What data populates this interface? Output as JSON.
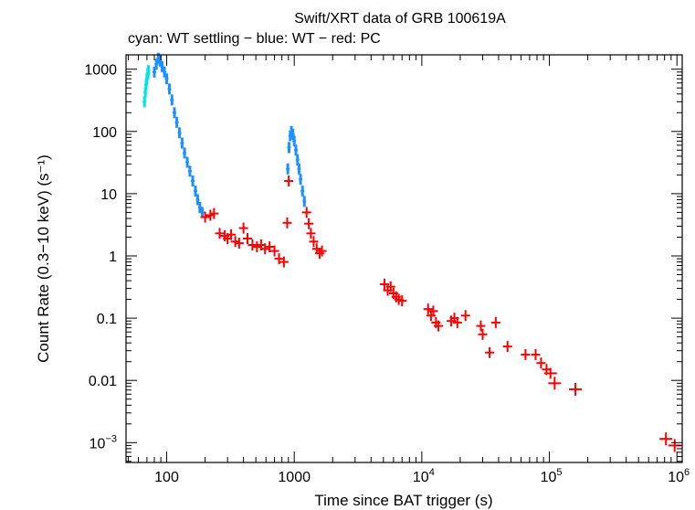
{
  "chart_data": {
    "type": "scatter",
    "title": "Swift/XRT data of GRB 100619A",
    "subtitle": "cyan: WT settling − blue: WT − red: PC",
    "xlabel": "Time since BAT trigger (s)",
    "ylabel": "Count Rate (0.3−10 keV) (s⁻¹)",
    "xscale": "log",
    "yscale": "log",
    "xlim": [
      48,
      1100000
    ],
    "ylim": [
      0.00048,
      1700
    ],
    "x_ticks": [
      {
        "value": 100,
        "label": "100"
      },
      {
        "value": 1000,
        "label": "1000"
      },
      {
        "value": 10000,
        "base": "10",
        "exp": "4"
      },
      {
        "value": 100000,
        "base": "10",
        "exp": "5"
      },
      {
        "value": 1000000,
        "base": "10",
        "exp": "6"
      }
    ],
    "y_ticks": [
      {
        "value": 1000,
        "label": "1000"
      },
      {
        "value": 100,
        "label": "100"
      },
      {
        "value": 10,
        "label": "10"
      },
      {
        "value": 1,
        "label": "1"
      },
      {
        "value": 0.1,
        "label": "0.1"
      },
      {
        "value": 0.01,
        "label": "0.01"
      },
      {
        "value": 0.001,
        "base": "10",
        "exp": "−3"
      }
    ],
    "colors": {
      "wt_settling": "#00e5e5",
      "wt": "#1e90ff",
      "pc": "#ff0000"
    },
    "series": [
      {
        "name": "WT settling",
        "color": "cyan",
        "points": [
          [
            67,
            300
          ],
          [
            68,
            420
          ],
          [
            69,
            560
          ],
          [
            70,
            700
          ],
          [
            71,
            850
          ],
          [
            72,
            950
          ]
        ]
      },
      {
        "name": "WT",
        "color": "blue",
        "points": [
          [
            80,
            900
          ],
          [
            83,
            1200
          ],
          [
            86,
            1500
          ],
          [
            89,
            1350
          ],
          [
            92,
            1100
          ],
          [
            96,
            900
          ],
          [
            100,
            700
          ],
          [
            105,
            480
          ],
          [
            110,
            320
          ],
          [
            115,
            200
          ],
          [
            120,
            140
          ],
          [
            126,
            95
          ],
          [
            132,
            65
          ],
          [
            138,
            45
          ],
          [
            145,
            32
          ],
          [
            152,
            23
          ],
          [
            160,
            16
          ],
          [
            168,
            11
          ],
          [
            175,
            8
          ],
          [
            182,
            6
          ],
          [
            190,
            5
          ],
          [
            890,
            25
          ],
          [
            910,
            55
          ],
          [
            930,
            85
          ],
          [
            950,
            100
          ],
          [
            975,
            90
          ],
          [
            1000,
            70
          ],
          [
            1030,
            50
          ],
          [
            1060,
            35
          ],
          [
            1090,
            25
          ],
          [
            1120,
            17
          ],
          [
            1160,
            11
          ],
          [
            1200,
            7.5
          ]
        ]
      },
      {
        "name": "PC",
        "color": "red",
        "points": [
          [
            200,
            4.2
          ],
          [
            220,
            4.5
          ],
          [
            235,
            4.8
          ],
          [
            260,
            2.3
          ],
          [
            285,
            2.1
          ],
          [
            300,
            1.9
          ],
          [
            320,
            2.2
          ],
          [
            345,
            1.7
          ],
          [
            370,
            1.6
          ],
          [
            400,
            2.8
          ],
          [
            430,
            1.9
          ],
          [
            470,
            1.5
          ],
          [
            510,
            1.4
          ],
          [
            550,
            1.5
          ],
          [
            590,
            1.3
          ],
          [
            640,
            1.4
          ],
          [
            700,
            1.2
          ],
          [
            760,
            0.9
          ],
          [
            830,
            0.8
          ],
          [
            880,
            3.4
          ],
          [
            905,
            16
          ],
          [
            1250,
            5
          ],
          [
            1300,
            3.3
          ],
          [
            1350,
            2.3
          ],
          [
            1420,
            1.7
          ],
          [
            1500,
            1.3
          ],
          [
            1580,
            1.1
          ],
          [
            1650,
            1.2
          ],
          [
            5100,
            0.35
          ],
          [
            5400,
            0.28
          ],
          [
            5700,
            0.32
          ],
          [
            6000,
            0.25
          ],
          [
            6300,
            0.22
          ],
          [
            6600,
            0.2
          ],
          [
            7000,
            0.19
          ],
          [
            11200,
            0.14
          ],
          [
            11800,
            0.11
          ],
          [
            12300,
            0.13
          ],
          [
            12900,
            0.085
          ],
          [
            13500,
            0.075
          ],
          [
            17000,
            0.09
          ],
          [
            18000,
            0.1
          ],
          [
            19000,
            0.085
          ],
          [
            22000,
            0.11
          ],
          [
            29000,
            0.075
          ],
          [
            30000,
            0.055
          ],
          [
            34000,
            0.028
          ],
          [
            38000,
            0.085
          ],
          [
            47000,
            0.035
          ],
          [
            65000,
            0.026
          ],
          [
            78000,
            0.026
          ],
          [
            86000,
            0.019
          ],
          [
            95000,
            0.015
          ],
          [
            102000,
            0.013
          ],
          [
            110000,
            0.009
          ],
          [
            160000,
            0.0072
          ],
          [
            820000,
            0.00115
          ],
          [
            960000,
            0.0009
          ]
        ]
      }
    ]
  }
}
